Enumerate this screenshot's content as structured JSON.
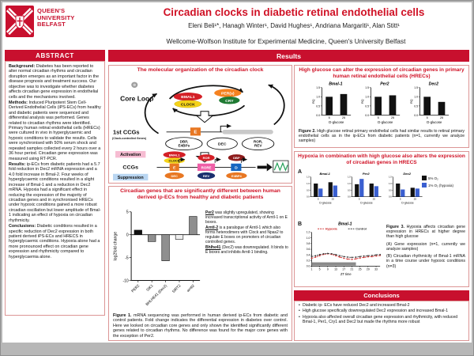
{
  "colors": {
    "brand_red": "#c8102e",
    "title_red": "#d01226",
    "box_border": "#dc9595",
    "bar_black": "#111111",
    "bar_gray": "#8f8f8f",
    "bar_white": "#efefef",
    "hypoxia_blue": "#3a5fd0",
    "hypoxia_line_red": "#cc2a2a"
  },
  "header": {
    "logo": {
      "line1": "QUEEN'S",
      "line2": "UNIVERSITY",
      "line3": "BELFAST"
    },
    "title": "Circadian clocks in diabetic retinal endothelial cells",
    "authors": "Eleni Beli¹*, Hanagh Winter¹, David Hughes¹, Andriana Margariti¹, Alan Stitt¹",
    "affiliation": "Wellcome-Wolfson Institute for Experimental Medicine, Queen's University Belfast"
  },
  "abstract": {
    "heading": "ABSTRACT",
    "sections": [
      {
        "label": "Background:",
        "text": " Diabetes has been reported to alter normal circadian rhythms and circadian disruption emerges as an important factor in the disease prognosis and treatment success. Our objective was to investigate whether diabetes affects circadian gene expression in endothelial cells and the mechanisms involved."
      },
      {
        "label": "Methods:",
        "text": " Induced Pluripotent Stem Cell-Derived Endothelial Cells (iPS-ECs) from healthy and diabetic patients were sequenced and differential analysis was performed. Genes related to circadian rhythms were identified. Primary human retinal endothelial cells (HRECs) were cultured in vivo in hyperglycaemic and hypoxic conditions to validate the results. Cells were synchronised with 50% serum shock and repeated samples collected every 2 hours over a 36 hour period. Circadian gene expression was measured using RT-PCR."
      },
      {
        "label": "Results:",
        "text": " ip-ECs from diabetic patients had a 5.7 fold reduction in Dec2 mRNA expression and a 4.0 fold increase in Bmal-2. Four weeks of hyperglycaemic conditions resulted in a slight increase of Bmal-1 and a reduction in Dec2 mRNA. Hypoxia had a significant effect in reducing the expression of the majority of circadian genes and in synchronised HRECs under hypoxic conditions gained a more robust circadian oscillation but lower amplitude of Bmal-1 indicating an effect of hypoxia on circadian rhythmicity."
      },
      {
        "label": "Conclusions:",
        "text": " Diabetic conditions resulted in a specific reduction of Dec2 expression in both patient derived iPS-ECs and HRECS in hyperglycaemic conditions. Hypoxia alone had a more pronounced effect on circadian gene expression and rhythmicity compared to hyperglycaemia alone."
      }
    ]
  },
  "results_heading": "Results",
  "clock_box": {
    "title": "The molecular organization of the circadian clock",
    "labels": {
      "core_loop": "Core Loop",
      "bmal1": "BMAL1",
      "clock": "CLOCK",
      "pers": "PER(s)",
      "cry": "CRY",
      "e_box": "E",
      "first_ccgs": "1st CCGs",
      "first_ccgs_sub": "(Clock-controlled Genes)",
      "dbp_line1": "DBP,",
      "dbp_line2": "E4BPs",
      "dec": "DEC",
      "ror_line1": "ROR,",
      "ror_line2": "REV",
      "activation": "Activation",
      "ccgs": "CCGs",
      "suppression": "Suppression",
      "ror": "ROR",
      "rore": "RORE",
      "rev": "REV",
      "dbp": "DBP",
      "d_box": "D",
      "e4bp4": "E4BP4"
    }
  },
  "figure1_box": {
    "title": "Circadian genes that are significantly different between human derived ip-ECs from healthy and diabetic patients",
    "notes": [
      {
        "lead": "Per2",
        "text": " was slightly upregulated, showing increased transcriptional activity of Arntl-1 on E boxes."
      },
      {
        "lead": "Arntl-2",
        "text": " is a paralogue of Arntl-1 which also forms heterodimers with Clock and Npas2 to regulate E boxes on promoters of circadian controlled genes."
      },
      {
        "lead": "Bhlhe41",
        "text": " (Dec2) was downregulated. It binds to E boxes and inhibits Arntl-1 binding."
      }
    ],
    "caption_lead": "Figure 1.",
    "caption": " mRNA sequencing was performed in human derived ip-ECs from diabetic and control patients. Fold change indicates the differential expression in diabetes over control. Here we looked on circadian core genes and only shown the identified significantly different genes related to circadian rhythms. No difference was found for the major core genes with the exception of Per2."
  },
  "figure2_box": {
    "title": "High glucose can alter the expression of circadian genes in primary human retinal endothelial cells (HRECs)",
    "caption_lead": "Figure 2.",
    "caption": " High glucose retinal primary endothelial cells had similar results to retinal primary endothelial cells as in the ip-ECs from diabetic patients (n=1, currently we analyze samples)"
  },
  "figure3_box": {
    "title": "Hypoxia in combination with high glucose also alters the expression of circadian genes in HRECS",
    "panel_a_label": "A",
    "panel_b_label": "B",
    "caption_lead": "Figure 3.",
    "caption": " Hypoxia affects circadian gene expression in HRECs at higher degree than high glucose",
    "caption_a": "(A) Gene expression (n=1, currently we analyze samples)",
    "caption_b": "(B) Circadian rhythmicity of Bmal-1 mRNA in a time course under hypoxic conditions (n=3)"
  },
  "conclusions": {
    "heading": "Conclusions",
    "bullets": [
      "Diabetic ip- ECs have reduced Dec2 and increased Bmal-2",
      "High glucose specifically downregulated Dec2 expression and increased Bmal-1",
      "Hypoxia also affected overall circadian gene expression and rhythmicity, with reduced Bmal-1, Per1, Cry1 and Dec2 but made the rhythms more robust"
    ]
  },
  "chart_data": [
    {
      "id": "fig1",
      "type": "bar",
      "title": "",
      "ylabel": "log2fold change",
      "categories": [
        "PER2",
        "SIK1",
        "BHLHE41 (Dec2)",
        "SIRT2",
        "arntl2"
      ],
      "values": [
        1.0,
        -1.5,
        -5.7,
        -1.0,
        4.0
      ],
      "bar_colors": [
        "#111111",
        "#8f8f8f",
        "#8f8f8f",
        "#efefef",
        "#8f8f8f"
      ],
      "ylim": [
        -10,
        5
      ],
      "yticks": [
        5,
        0,
        -5,
        -10
      ],
      "grid": false
    },
    {
      "id": "fig2",
      "type": "bar",
      "ylabel": "RQ",
      "xlabel": "D-glucose",
      "ylim": [
        0,
        1.5
      ],
      "yticks": [
        0,
        0.5,
        1.0,
        1.5
      ],
      "bar_color": "#111111",
      "charts": [
        {
          "title": "Bmal-1",
          "categories": [
            "5",
            "25"
          ],
          "values": [
            1.0,
            1.15
          ]
        },
        {
          "title": "Per2",
          "categories": [
            "5",
            "25"
          ],
          "values": [
            1.0,
            1.08
          ]
        },
        {
          "title": "Dec2",
          "categories": [
            "5",
            "25"
          ],
          "values": [
            1.0,
            0.72
          ]
        }
      ]
    },
    {
      "id": "fig3a",
      "type": "bar",
      "xlabel": "D-glucose",
      "ylim": [
        0,
        1.5
      ],
      "yticks": [
        0,
        0.5,
        1.0,
        1.5
      ],
      "series_names": [
        "5% O₂",
        "1% O₂ (hypoxia)"
      ],
      "series_colors": [
        "#111111",
        "#3a5fd0"
      ],
      "charts": [
        {
          "title": "Bmal-1",
          "categories": [
            "5",
            "25"
          ],
          "series": [
            [
              1.0,
              1.1
            ],
            [
              0.62,
              0.85
            ]
          ]
        },
        {
          "title": "Per2",
          "categories": [
            "5",
            "25"
          ],
          "series": [
            [
              0.95,
              1.0
            ],
            [
              1.35,
              0.8
            ]
          ]
        },
        {
          "title": "Dec2",
          "categories": [
            "5",
            "25"
          ],
          "series": [
            [
              1.0,
              0.68
            ],
            [
              0.55,
              0.62
            ]
          ]
        }
      ]
    },
    {
      "id": "fig3b",
      "type": "line",
      "title": "Bmal-1",
      "xlabel": "ZT time",
      "ylim": [
        0,
        1.2
      ],
      "yticks": [
        0,
        0.2,
        0.4,
        0.6,
        0.8,
        1.0,
        1.2
      ],
      "xticks": [
        1,
        5,
        9,
        13,
        17,
        21,
        25,
        29,
        33
      ],
      "x": [
        1,
        3,
        5,
        7,
        9,
        11,
        13,
        15,
        17,
        19,
        21,
        23,
        25,
        27,
        29,
        31,
        33,
        35
      ],
      "series": [
        {
          "name": "Hypoxia",
          "color": "#cc2a2a",
          "values": [
            0.28,
            0.32,
            0.37,
            0.42,
            0.44,
            0.42,
            0.37,
            0.32,
            0.28,
            0.25,
            0.24,
            0.26,
            0.29,
            0.31,
            0.33,
            0.34,
            0.36,
            0.38
          ]
        },
        {
          "name": "Control",
          "color": "#333333",
          "values": [
            0.34,
            0.37,
            0.41,
            0.44,
            0.45,
            0.44,
            0.41,
            0.37,
            0.34,
            0.32,
            0.31,
            0.32,
            0.34,
            0.36,
            0.37,
            0.38,
            0.4,
            0.41
          ]
        }
      ],
      "dark_bar": {
        "x_start": 1,
        "x_end": 23
      },
      "legend_position": "top"
    }
  ]
}
